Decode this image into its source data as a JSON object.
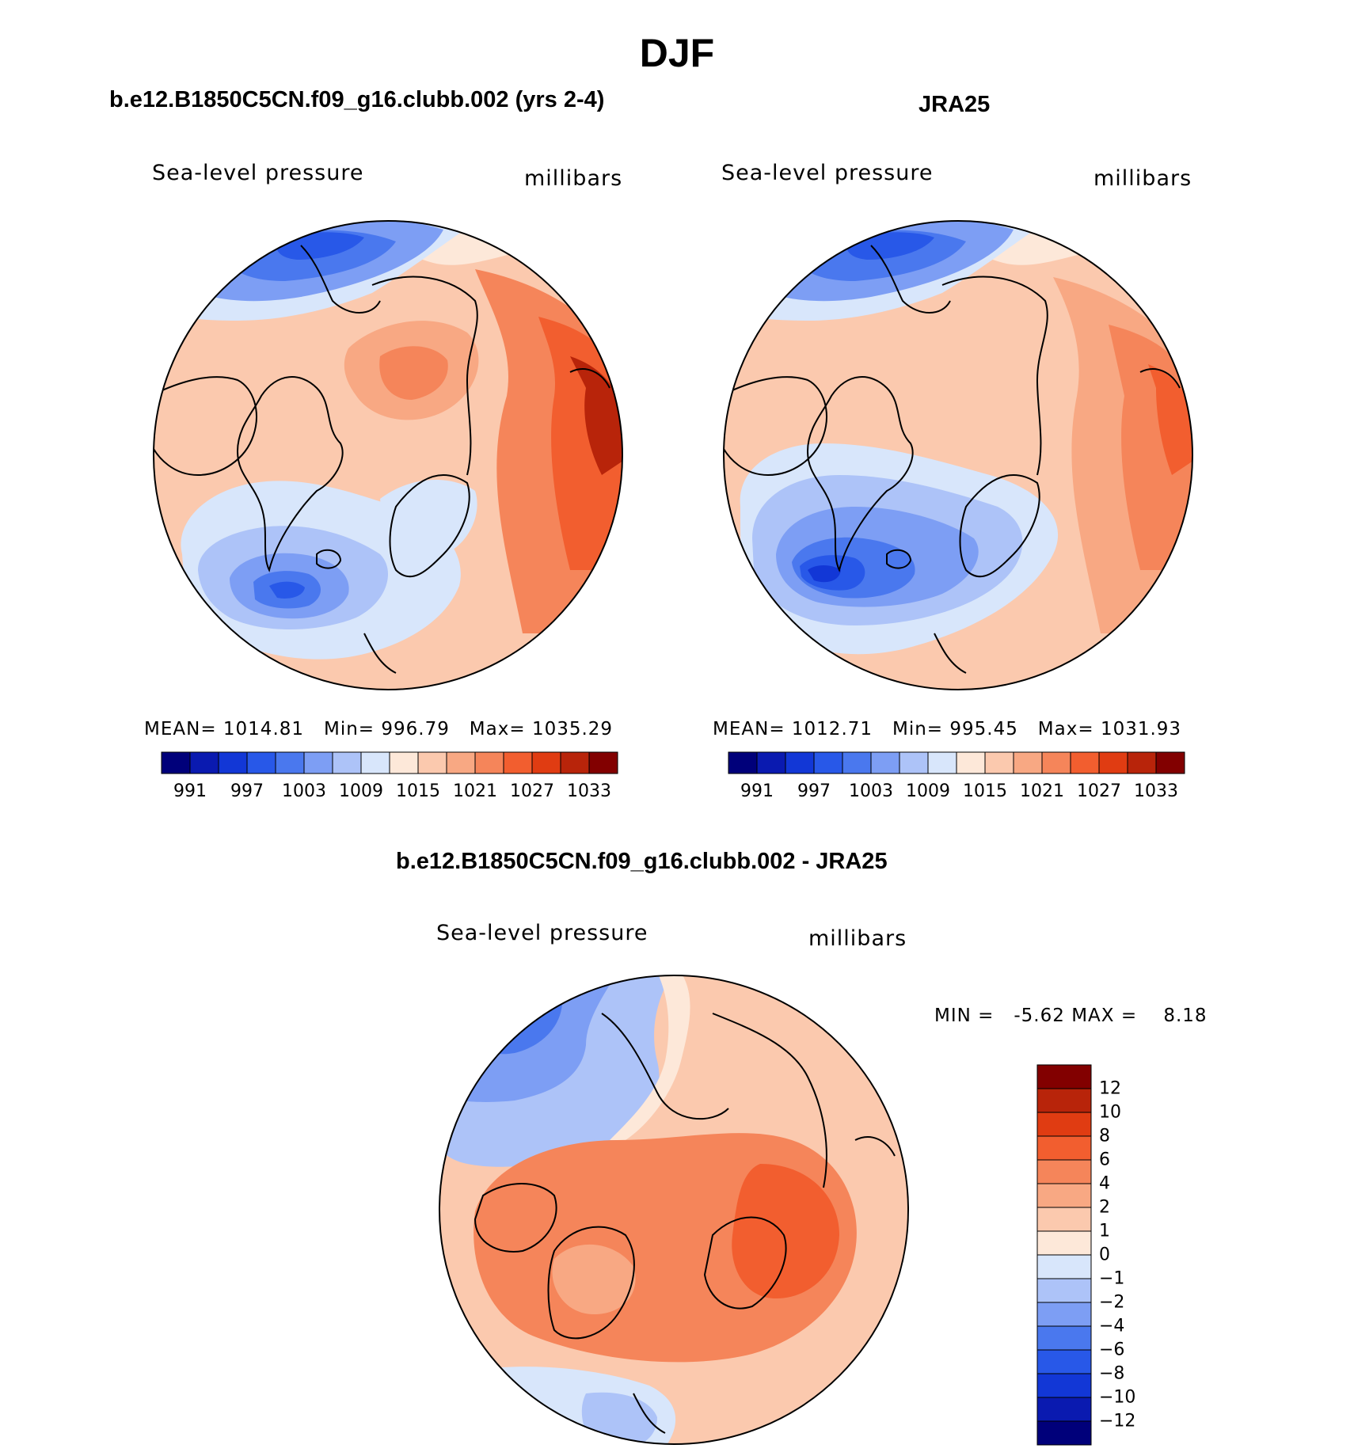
{
  "figure": {
    "season": "DJF",
    "left_title": "b.e12.B1850C5CN.f09_g16.clubb.002 (yrs 2-4)",
    "right_title": "JRA25",
    "diff_title": "b.e12.B1850C5CN.f09_g16.clubb.002 - JRA25"
  },
  "chart_data": [
    {
      "type": "polar-contour-map",
      "name": "model",
      "variable": "Sea-level pressure",
      "units": "millibars",
      "mean_label": "MEAN=",
      "mean": "1014.81",
      "min_label": "Min=",
      "min": "996.79",
      "max_label": "Max=",
      "max": "1035.29",
      "colorbar_ticks": [
        "991",
        "997",
        "1003",
        "1009",
        "1015",
        "1021",
        "1027",
        "1033"
      ],
      "colorbar_colors": [
        "#00007a",
        "#0a1ab0",
        "#1237d6",
        "#2858e8",
        "#4a78ee",
        "#7d9ef4",
        "#adc3f8",
        "#d8e6fb",
        "#fde8d9",
        "#fbc9ae",
        "#f8a883",
        "#f5855a",
        "#f25e2f",
        "#e03c12",
        "#b8240a",
        "#820000"
      ]
    },
    {
      "type": "polar-contour-map",
      "name": "observation",
      "variable": "Sea-level pressure",
      "units": "millibars",
      "mean_label": "MEAN=",
      "mean": "1012.71",
      "min_label": "Min=",
      "min": "995.45",
      "max_label": "Max=",
      "max": "1031.93",
      "colorbar_ticks": [
        "991",
        "997",
        "1003",
        "1009",
        "1015",
        "1021",
        "1027",
        "1033"
      ],
      "colorbar_colors": [
        "#00007a",
        "#0a1ab0",
        "#1237d6",
        "#2858e8",
        "#4a78ee",
        "#7d9ef4",
        "#adc3f8",
        "#d8e6fb",
        "#fde8d9",
        "#fbc9ae",
        "#f8a883",
        "#f5855a",
        "#f25e2f",
        "#e03c12",
        "#b8240a",
        "#820000"
      ]
    },
    {
      "type": "polar-contour-map",
      "name": "difference",
      "variable": "Sea-level pressure",
      "units": "millibars",
      "min_label": "MIN =",
      "min": "-5.62",
      "max_label": "MAX =",
      "max": "8.18",
      "colorbar_ticks": [
        "12",
        "10",
        "8",
        "6",
        "4",
        "2",
        "1",
        "0",
        "−1",
        "−2",
        "−4",
        "−6",
        "−8",
        "−10",
        "−12"
      ],
      "colorbar_colors": [
        "#820000",
        "#b8240a",
        "#e03c12",
        "#f25e2f",
        "#f5855a",
        "#f8a883",
        "#fbc9ae",
        "#fde8d9",
        "#d8e6fb",
        "#adc3f8",
        "#7d9ef4",
        "#4a78ee",
        "#2858e8",
        "#1237d6",
        "#0a1ab0",
        "#00007a"
      ]
    }
  ]
}
